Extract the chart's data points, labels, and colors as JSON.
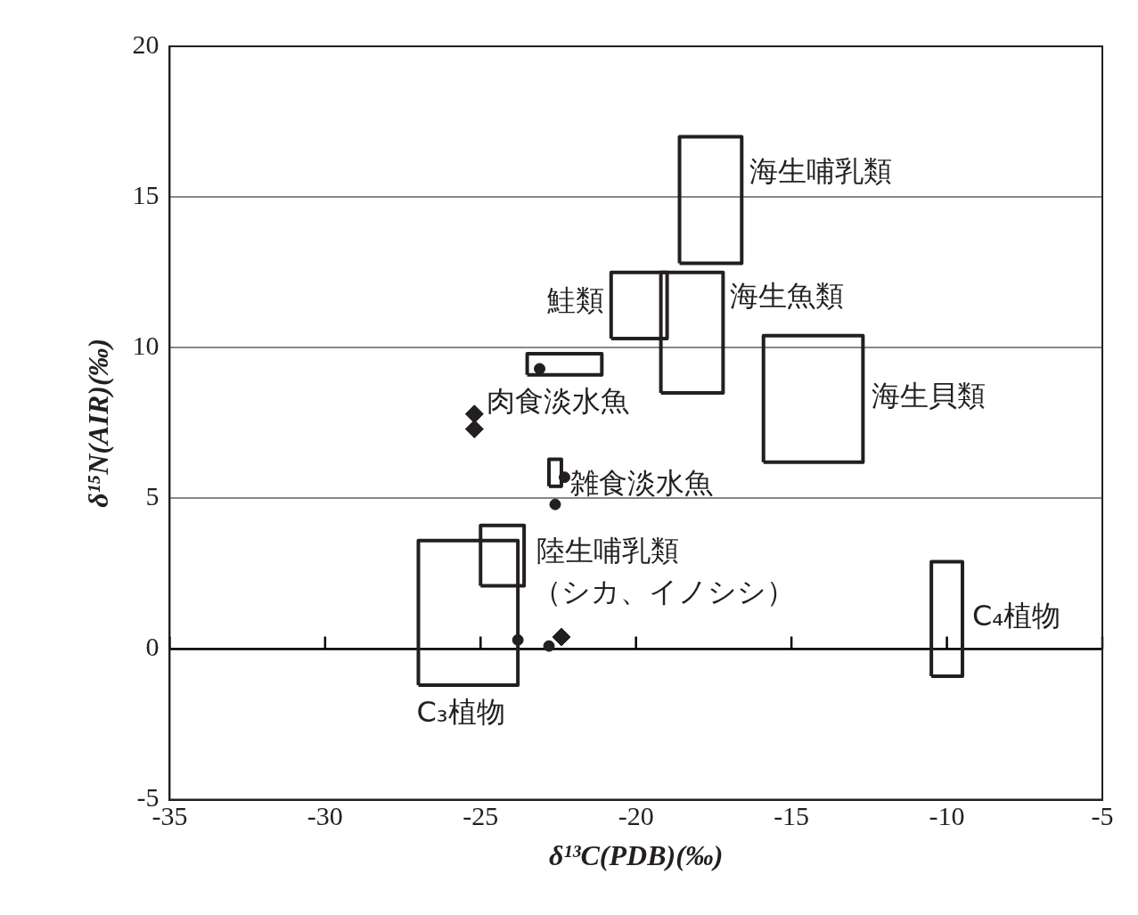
{
  "chart_data": {
    "type": "scatter",
    "xlabel": "δ¹³C(PDB)(‰)",
    "ylabel": "δ¹⁵N(AIR)(‰)",
    "xlim": [
      -35,
      -5
    ],
    "xticks": [
      -35,
      -30,
      -25,
      -20,
      -15,
      -10,
      -5
    ],
    "ylim": [
      -5,
      20
    ],
    "yticks": [
      -5,
      0,
      5,
      10,
      15,
      20
    ],
    "grid": "y",
    "ref_lines": [
      {
        "axis": "y",
        "value": 0,
        "color": "#000000"
      }
    ],
    "series": [
      {
        "type": "line",
        "marker": "none",
        "name": "海生哺乳類",
        "color": "#231f20",
        "x": [
          -18.6,
          -18.6,
          -16.6,
          -16.6
        ],
        "values": [
          12.8,
          17.0,
          17.0,
          12.8
        ]
      },
      {
        "type": "line",
        "marker": "none",
        "color": "#231f20",
        "x": [
          -18.6,
          -16.6
        ],
        "values": [
          12.8,
          12.8
        ]
      },
      {
        "type": "line",
        "marker": "none",
        "name": "鮭類",
        "color": "#231f20",
        "x": [
          -20.8,
          -20.8,
          -19.0,
          -19.0
        ],
        "values": [
          10.3,
          12.5,
          12.5,
          10.3
        ]
      },
      {
        "type": "line",
        "marker": "none",
        "color": "#231f20",
        "x": [
          -20.8,
          -19.0
        ],
        "values": [
          10.3,
          10.3
        ]
      },
      {
        "type": "line",
        "marker": "none",
        "name": "海生魚類",
        "color": "#231f20",
        "x": [
          -19.2,
          -19.2,
          -17.2,
          -17.2
        ],
        "values": [
          8.5,
          12.5,
          12.5,
          8.5
        ]
      },
      {
        "type": "line",
        "marker": "none",
        "color": "#231f20",
        "x": [
          -19.2,
          -17.2
        ],
        "values": [
          8.5,
          8.5
        ]
      },
      {
        "type": "line",
        "marker": "none",
        "name": "海生貝類",
        "color": "#231f20",
        "x": [
          -15.9,
          -15.9,
          -12.7,
          -12.7
        ],
        "values": [
          6.2,
          10.4,
          10.4,
          6.2
        ]
      },
      {
        "type": "line",
        "marker": "none",
        "color": "#231f20",
        "x": [
          -15.9,
          -12.7
        ],
        "values": [
          6.2,
          6.2
        ]
      },
      {
        "type": "line",
        "marker": "none",
        "name": "肉食淡水魚",
        "color": "#231f20",
        "x": [
          -23.5,
          -23.5,
          -21.1,
          -21.1
        ],
        "values": [
          9.1,
          9.8,
          9.8,
          9.1
        ]
      },
      {
        "type": "line",
        "marker": "none",
        "color": "#231f20",
        "x": [
          -23.5,
          -21.1
        ],
        "values": [
          9.1,
          9.1
        ]
      },
      {
        "type": "line",
        "marker": "none",
        "name": "雑食淡水魚",
        "color": "#231f20",
        "x": [
          -22.8,
          -22.8,
          -22.4,
          -22.4
        ],
        "values": [
          5.4,
          6.3,
          6.3,
          5.4
        ]
      },
      {
        "type": "line",
        "marker": "none",
        "color": "#231f20",
        "x": [
          -22.8,
          -22.4
        ],
        "values": [
          5.4,
          5.4
        ]
      },
      {
        "type": "line",
        "marker": "none",
        "name": "陸生哺乳類（シカ、イノシシ）",
        "color": "#231f20",
        "x": [
          -25.0,
          -25.0,
          -23.6,
          -23.6
        ],
        "values": [
          2.1,
          4.1,
          4.1,
          2.1
        ]
      },
      {
        "type": "line",
        "marker": "none",
        "color": "#231f20",
        "x": [
          -25.0,
          -23.6
        ],
        "values": [
          2.1,
          2.1
        ]
      },
      {
        "type": "line",
        "marker": "none",
        "name": "C₃植物",
        "color": "#231f20",
        "x": [
          -27.0,
          -27.0,
          -23.8,
          -23.8
        ],
        "values": [
          -1.2,
          3.6,
          3.6,
          -1.2
        ]
      },
      {
        "type": "line",
        "marker": "none",
        "color": "#231f20",
        "x": [
          -27.0,
          -23.8
        ],
        "values": [
          -1.2,
          -1.2
        ]
      },
      {
        "type": "line",
        "marker": "none",
        "name": "C₄植物",
        "color": "#231f20",
        "x": [
          -10.5,
          -10.5,
          -9.5,
          -9.5
        ],
        "values": [
          -0.9,
          2.9,
          2.9,
          -0.9
        ]
      },
      {
        "type": "line",
        "marker": "none",
        "color": "#231f20",
        "x": [
          -10.5,
          -9.5
        ],
        "values": [
          -0.9,
          -0.9
        ]
      },
      {
        "marker": "diamond",
        "color": "#231f20",
        "x": [
          -25.2,
          -25.2,
          -22.4
        ],
        "values": [
          7.8,
          7.3,
          0.4
        ]
      },
      {
        "marker": "circle",
        "color": "#231f20",
        "x": [
          -23.1,
          -22.3,
          -22.6,
          -23.8,
          -22.8
        ],
        "values": [
          9.3,
          5.7,
          4.8,
          0.3,
          0.1
        ]
      }
    ]
  }
}
